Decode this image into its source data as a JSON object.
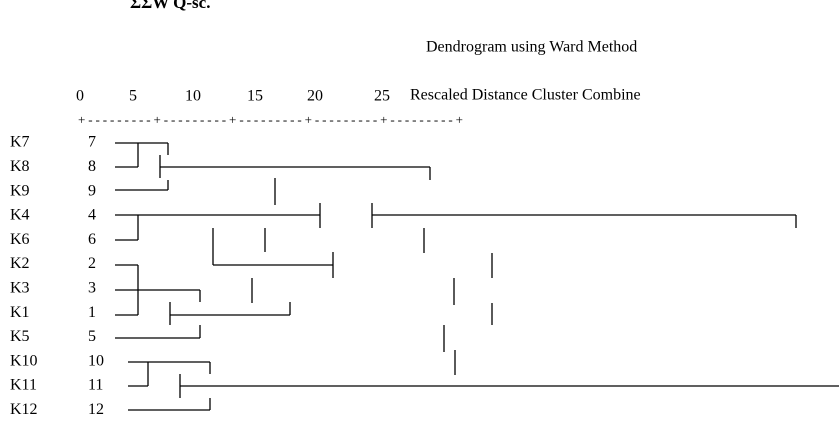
{
  "header_fragment": "ΣΣW Q-sc.",
  "title": "Dendrogram using Ward Method",
  "subtitle": "Rescaled Distance Cluster Combine",
  "scale": [
    0,
    5,
    10,
    15,
    20,
    25
  ],
  "ruler": "+---------+---------+---------+---------+---------+",
  "rows": [
    {
      "label": "K7",
      "number": 7
    },
    {
      "label": "K8",
      "number": 8
    },
    {
      "label": "K9",
      "number": 9
    },
    {
      "label": "K4",
      "number": 4
    },
    {
      "label": "K6",
      "number": 6
    },
    {
      "label": "K2",
      "number": 2
    },
    {
      "label": "K3",
      "number": 3
    },
    {
      "label": "K1",
      "number": 1
    },
    {
      "label": "K5",
      "number": 5
    },
    {
      "label": "K10",
      "number": 10
    },
    {
      "label": "K11",
      "number": 11
    },
    {
      "label": "K12",
      "number": 12
    }
  ]
}
